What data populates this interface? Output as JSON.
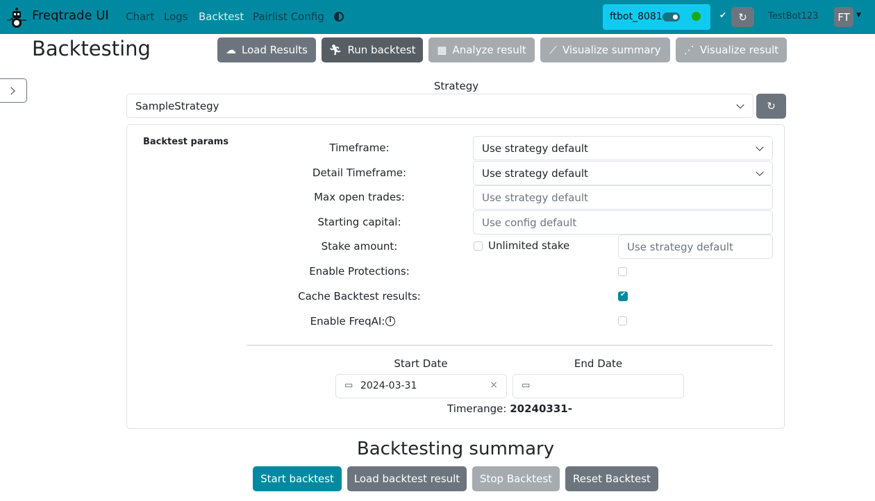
{
  "nav": {
    "brand": "Freqtrade UI",
    "links": [
      "Chart",
      "Logs",
      "Backtest",
      "Pairlist Config"
    ],
    "active": "Backtest",
    "bot_name": "ftbot_8081",
    "user": "TestBot123",
    "avatar": "FT",
    "status_color": "#1aab0a",
    "accent": "#0089a1"
  },
  "page": {
    "title": "Backtesting"
  },
  "toolbar": [
    "Load Results",
    "Run backtest",
    "Analyze result",
    "Visualize summary",
    "Visualize result"
  ],
  "strategy": {
    "label": "Strategy",
    "value": "SampleStrategy"
  },
  "params": {
    "heading": "Backtest params",
    "timeframe": {
      "label": "Timeframe:",
      "value": "Use strategy default"
    },
    "detail_timeframe": {
      "label": "Detail Timeframe:",
      "value": "Use strategy default"
    },
    "max_open_trades": {
      "label": "Max open trades:",
      "placeholder": "Use strategy default"
    },
    "starting_capital": {
      "label": "Starting capital:",
      "placeholder": "Use config default"
    },
    "stake_amount": {
      "label": "Stake amount:",
      "unlimited_label": "Unlimited stake",
      "unlimited": false,
      "placeholder": "Use strategy default"
    },
    "enable_protections": {
      "label": "Enable Protections:",
      "checked": false
    },
    "cache_results": {
      "label": "Cache Backtest results:",
      "checked": true
    },
    "enable_freqai": {
      "label": "Enable FreqAI:",
      "checked": false
    }
  },
  "dates": {
    "start_label": "Start Date",
    "start_value": "2024-03-31",
    "end_label": "End Date",
    "end_value": "",
    "timerange_label": "Timerange:",
    "timerange_value": "20240331-"
  },
  "summary": {
    "title": "Backtesting summary",
    "buttons": [
      "Start backtest",
      "Load backtest result",
      "Stop Backtest",
      "Reset Backtest"
    ]
  }
}
